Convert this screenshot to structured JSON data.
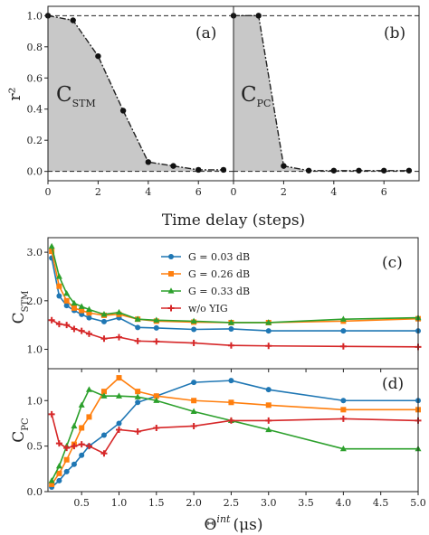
{
  "chart_data": [
    {
      "type": "area",
      "panel": "(a)",
      "area_label": {
        "main": "C",
        "sub": "STM"
      },
      "xlabel": "Time delay (steps)",
      "ylabel": "r²",
      "xlim": [
        0,
        7.4
      ],
      "ylim": [
        -0.06,
        1.06
      ],
      "xticks": [
        0,
        2,
        4,
        6
      ],
      "yticks": [
        0.0,
        0.2,
        0.4,
        0.6,
        0.8,
        1.0
      ],
      "reference_lines": [
        0.0,
        1.0
      ],
      "x": [
        0,
        1,
        2,
        3,
        4,
        5,
        6,
        7
      ],
      "values": [
        1.0,
        0.97,
        0.74,
        0.39,
        0.06,
        0.035,
        0.01,
        0.01
      ],
      "style": {
        "line": "dash-dot",
        "marker": "circle",
        "fill": "#c8c8c8"
      }
    },
    {
      "type": "area",
      "panel": "(b)",
      "area_label": {
        "main": "C",
        "sub": "PC"
      },
      "xlabel": "Time delay (steps)",
      "xlim": [
        0,
        7.4
      ],
      "ylim": [
        -0.06,
        1.06
      ],
      "xticks": [
        0,
        2,
        4,
        6
      ],
      "reference_lines": [
        0.0,
        1.0
      ],
      "x": [
        0,
        1,
        2,
        3,
        4,
        5,
        6,
        7
      ],
      "values": [
        1.0,
        1.0,
        0.035,
        0.005,
        0.005,
        0.005,
        0.005,
        0.005
      ],
      "style": {
        "line": "dash-dot",
        "marker": "circle",
        "fill": "#c8c8c8"
      }
    },
    {
      "type": "line",
      "panel": "(c)",
      "ylabel": {
        "main": "C",
        "sub": "STM"
      },
      "xlim": [
        0.05,
        5.0
      ],
      "ylim": [
        0.6,
        3.3
      ],
      "yticks": [
        1.0,
        2.0,
        3.0
      ],
      "x": [
        0.1,
        0.2,
        0.3,
        0.4,
        0.5,
        0.6,
        0.8,
        1.0,
        1.25,
        1.5,
        2.0,
        2.5,
        3.0,
        4.0,
        5.0
      ],
      "series": [
        {
          "name": "G = 0.03 dB",
          "color": "#1f77b4",
          "marker": "circle",
          "values": [
            2.88,
            2.1,
            1.9,
            1.8,
            1.72,
            1.65,
            1.57,
            1.65,
            1.45,
            1.44,
            1.41,
            1.42,
            1.38,
            1.38,
            1.38
          ]
        },
        {
          "name": "G = 0.26 dB",
          "color": "#ff7f0e",
          "marker": "square",
          "values": [
            3.02,
            2.3,
            2.0,
            1.85,
            1.8,
            1.75,
            1.7,
            1.72,
            1.62,
            1.58,
            1.56,
            1.55,
            1.55,
            1.58,
            1.63
          ]
        },
        {
          "name": "G = 0.33 dB",
          "color": "#2ca02c",
          "marker": "triangle",
          "values": [
            3.12,
            2.5,
            2.15,
            1.95,
            1.88,
            1.82,
            1.72,
            1.76,
            1.62,
            1.6,
            1.58,
            1.55,
            1.55,
            1.62,
            1.65
          ]
        },
        {
          "name": "w/o YIG",
          "color": "#d62728",
          "marker": "plus",
          "values": [
            1.6,
            1.52,
            1.5,
            1.42,
            1.38,
            1.32,
            1.22,
            1.25,
            1.17,
            1.16,
            1.13,
            1.08,
            1.07,
            1.06,
            1.05
          ]
        }
      ]
    },
    {
      "type": "line",
      "panel": "(d)",
      "ylabel": {
        "main": "C",
        "sub": "PC"
      },
      "xlabel": {
        "main": "Θ",
        "sup": "int",
        "unit": "(μs)"
      },
      "xlim": [
        0.05,
        5.0
      ],
      "ylim": [
        0.0,
        1.35
      ],
      "yticks": [
        0.0,
        0.5,
        1.0
      ],
      "xticks": [
        0.5,
        1.0,
        1.5,
        2.0,
        2.5,
        3.0,
        3.5,
        4.0,
        4.5,
        5.0
      ],
      "xtick_labels": [
        "0.5",
        "1.0",
        "1.5",
        "2.0",
        "2.5",
        "3.0",
        "3.5",
        "4.0",
        "4.5",
        "5.0"
      ],
      "x": [
        0.1,
        0.2,
        0.3,
        0.4,
        0.5,
        0.6,
        0.8,
        1.0,
        1.25,
        1.5,
        2.0,
        2.5,
        3.0,
        4.0,
        5.0
      ],
      "series": [
        {
          "name": "G = 0.03 dB",
          "color": "#1f77b4",
          "marker": "circle",
          "values": [
            0.05,
            0.12,
            0.22,
            0.3,
            0.4,
            0.5,
            0.62,
            0.75,
            0.98,
            1.05,
            1.2,
            1.22,
            1.12,
            1.0,
            1.0
          ]
        },
        {
          "name": "G = 0.26 dB",
          "color": "#ff7f0e",
          "marker": "square",
          "values": [
            0.08,
            0.2,
            0.35,
            0.52,
            0.7,
            0.82,
            1.1,
            1.25,
            1.1,
            1.05,
            1.0,
            0.98,
            0.95,
            0.9,
            0.9
          ]
        },
        {
          "name": "G = 0.33 dB",
          "color": "#2ca02c",
          "marker": "triangle",
          "values": [
            0.12,
            0.28,
            0.5,
            0.72,
            0.95,
            1.12,
            1.05,
            1.05,
            1.04,
            1.0,
            0.88,
            0.78,
            0.68,
            0.47,
            0.47
          ]
        },
        {
          "name": "w/o YIG",
          "color": "#d62728",
          "marker": "plus",
          "values": [
            0.85,
            0.53,
            0.48,
            0.5,
            0.52,
            0.5,
            0.42,
            0.68,
            0.66,
            0.7,
            0.72,
            0.78,
            0.78,
            0.8,
            0.78
          ]
        }
      ]
    }
  ]
}
